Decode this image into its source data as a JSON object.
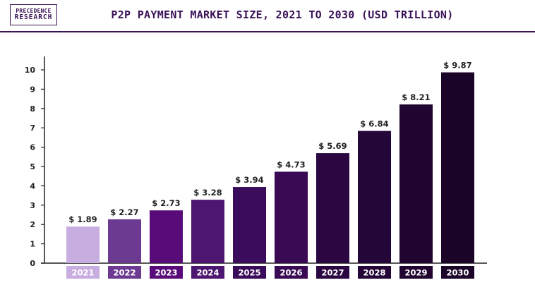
{
  "logo": {
    "line1": "PRECEDENCE",
    "line2": "RESEARCH"
  },
  "colors": {
    "title": "#3a1358",
    "axis": "#222222",
    "label_text": "#ffffff",
    "bars": [
      "#c8ade0",
      "#6c3a91",
      "#5a0b7a",
      "#4d1670",
      "#3c0c5c",
      "#3a0a55",
      "#2b0742",
      "#250638",
      "#1f0530",
      "#1a0428"
    ]
  },
  "chart_data": {
    "type": "bar",
    "title": "P2P PAYMENT MARKET SIZE, 2021 TO 2030 (USD TRILLION)",
    "categories": [
      "2021",
      "2022",
      "2023",
      "2024",
      "2025",
      "2026",
      "2027",
      "2028",
      "2029",
      "2030"
    ],
    "values": [
      1.89,
      2.27,
      2.73,
      3.28,
      3.94,
      4.73,
      5.69,
      6.84,
      8.21,
      9.87
    ],
    "data_labels": [
      "$ 1.89",
      "$ 2.27",
      "$ 2.73",
      "$ 3.28",
      "$ 3.94",
      "$ 4.73",
      "$ 5.69",
      "$ 6.84",
      "$ 8.21",
      "$ 9.87"
    ],
    "yticks": [
      0,
      1,
      2,
      3,
      4,
      5,
      6,
      7,
      8,
      9,
      10
    ],
    "ylim": [
      0,
      10
    ],
    "xlabel": "",
    "ylabel": "",
    "grid": false
  }
}
